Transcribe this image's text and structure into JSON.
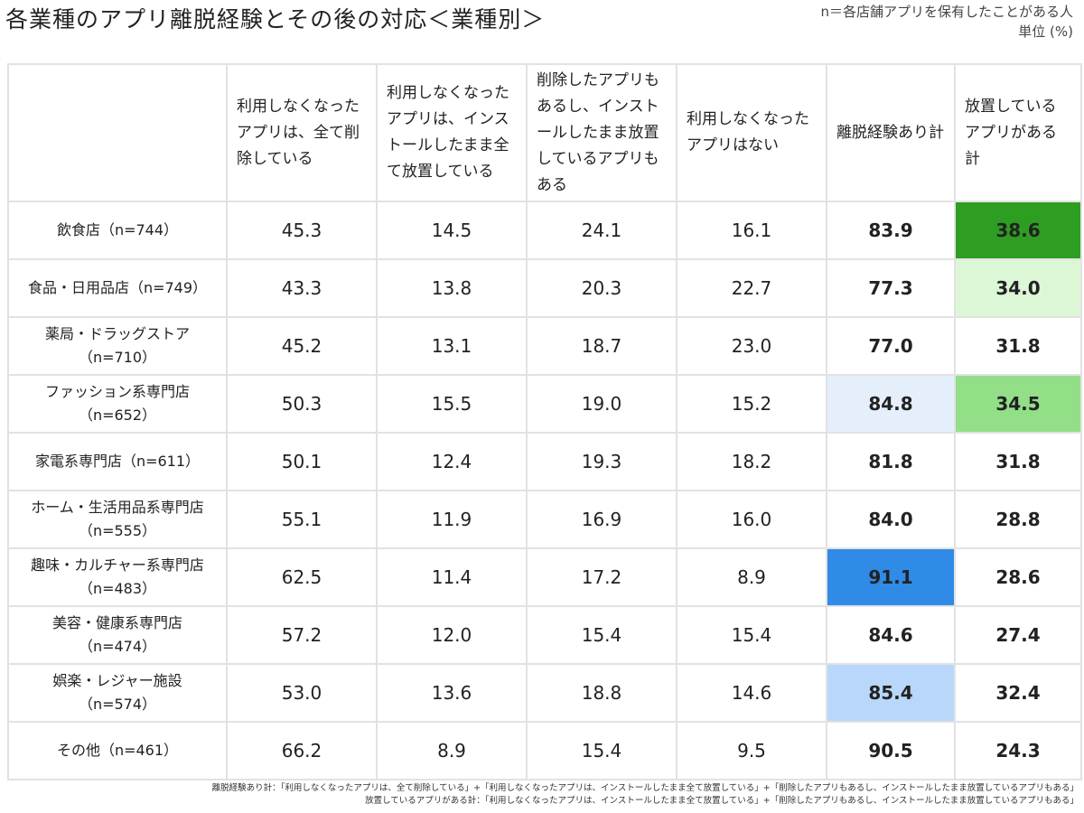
{
  "header": {
    "title": "各業種のアプリ離脱経験とその後の対応＜業種別＞",
    "note": "n＝各店舗アプリを保有したことがある人",
    "unit": "単位 (%)"
  },
  "table": {
    "columns": [
      "利用しなくなったアプリは、全て削除している",
      "利用しなくなったアプリは、インストールしたまま全て放置している",
      "削除したアプリもあるし、インストールしたまま放置しているアプリもある",
      "利用しなくなったアプリはない",
      "離脱経験あり計",
      "放置しているアプリがある計"
    ],
    "rows": [
      [
        "飲食店（n=744）",
        "45.3",
        "14.5",
        "24.1",
        "16.1",
        "83.9",
        "38.6"
      ],
      [
        "食品・日用品店（n=749）",
        "43.3",
        "13.8",
        "20.3",
        "22.7",
        "77.3",
        "34.0"
      ],
      [
        "薬局・ドラッグストア\n（n=710）",
        "45.2",
        "13.1",
        "18.7",
        "23.0",
        "77.0",
        "31.8"
      ],
      [
        "ファッション系専門店\n（n=652）",
        "50.3",
        "15.5",
        "19.0",
        "15.2",
        "84.8",
        "34.5"
      ],
      [
        "家電系専門店（n=611）",
        "50.1",
        "12.4",
        "19.3",
        "18.2",
        "81.8",
        "31.8"
      ],
      [
        "ホーム・生活用品系専門店\n（n=555）",
        "55.1",
        "11.9",
        "16.9",
        "16.0",
        "84.0",
        "28.8"
      ],
      [
        "趣味・カルチャー系専門店\n（n=483）",
        "62.5",
        "11.4",
        "17.2",
        "8.9",
        "91.1",
        "28.6"
      ],
      [
        "美容・健康系専門店\n（n=474）",
        "57.2",
        "12.0",
        "15.4",
        "15.4",
        "84.6",
        "27.4"
      ],
      [
        "娯楽・レジャー施設\n（n=574）",
        "53.0",
        "13.6",
        "18.8",
        "14.6",
        "85.4",
        "32.4"
      ],
      [
        "その他（n=461）",
        "66.2",
        "8.9",
        "15.4",
        "9.5",
        "90.5",
        "24.3"
      ]
    ]
  },
  "footer": [
    "離脱経験あり計：「利用しなくなったアプリは、全て削除している」+「利用しなくなったアプリは、インストールしたまま全て放置している」+「削除したアプリもあるし、インストールしたまま放置しているアプリもある」",
    "放置しているアプリがある計：「利用しなくなったアプリは、インストールしたまま全て放置している」+「削除したアプリもあるし、インストールしたまま放置しているアプリもある」"
  ]
}
